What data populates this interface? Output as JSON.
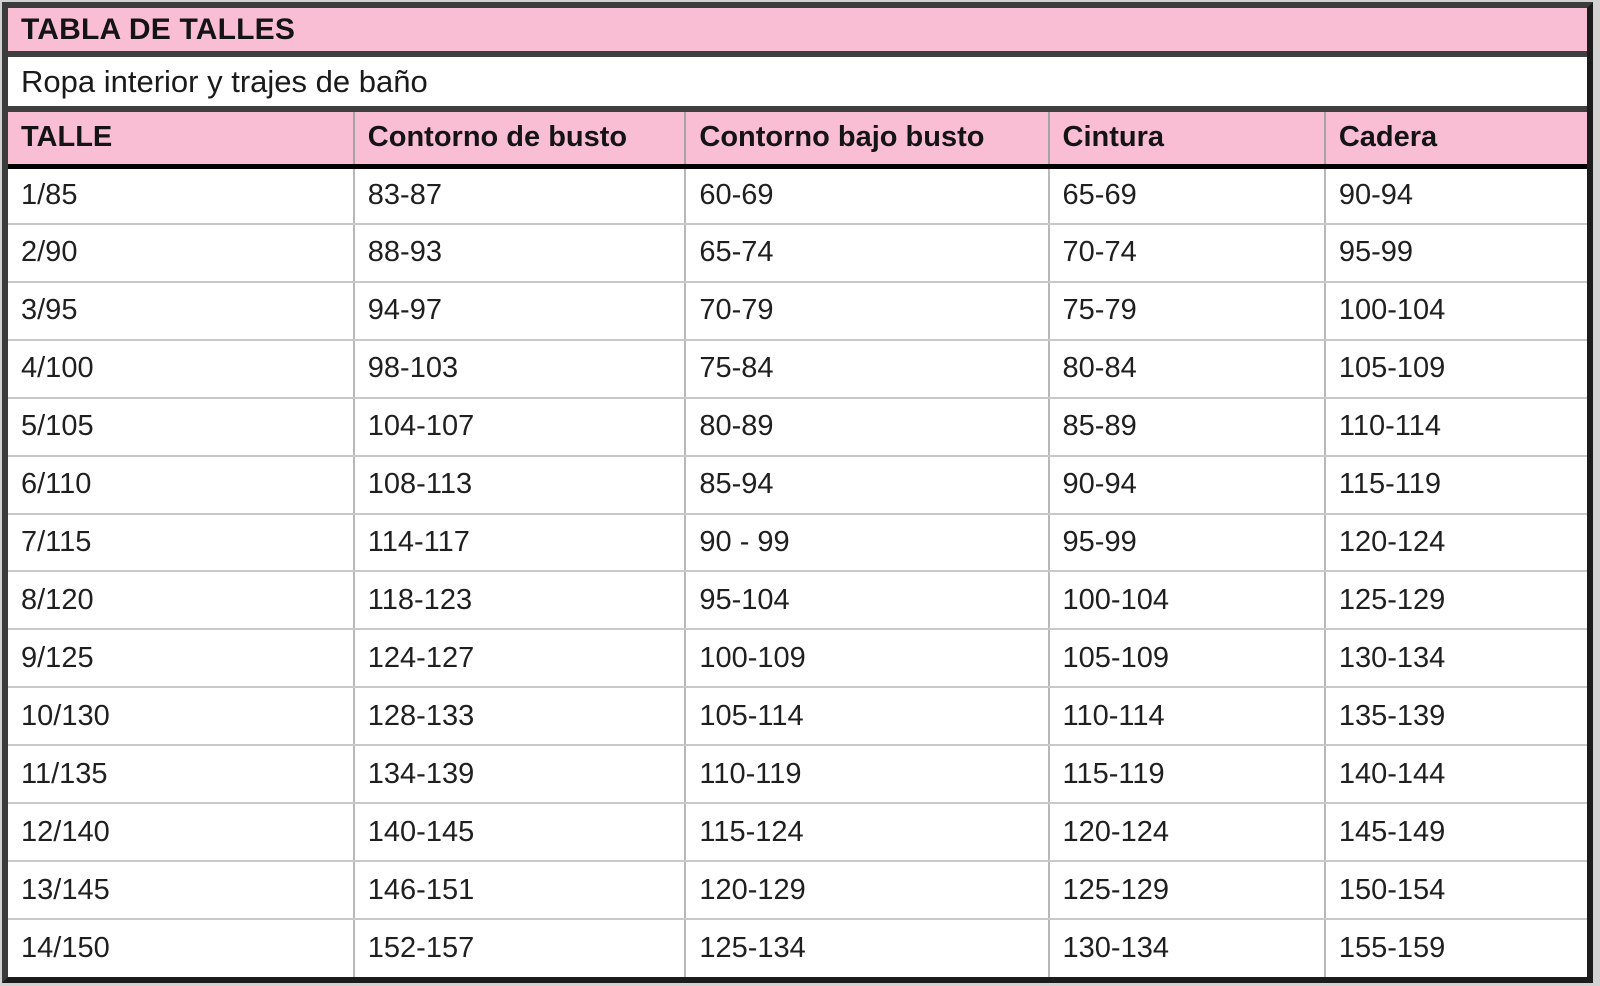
{
  "table": {
    "title": "TABLA DE TALLES",
    "subtitle": "Ropa interior y trajes de baño",
    "columns": [
      "TALLE",
      "Contorno de busto",
      "Contorno bajo busto",
      "Cintura",
      "Cadera"
    ],
    "rows": [
      [
        "1/85",
        "83-87",
        "60-69",
        "65-69",
        "90-94"
      ],
      [
        "2/90",
        "88-93",
        "65-74",
        "70-74",
        "95-99"
      ],
      [
        "3/95",
        "94-97",
        "70-79",
        "75-79",
        "100-104"
      ],
      [
        "4/100",
        "98-103",
        "75-84",
        "80-84",
        "105-109"
      ],
      [
        "5/105",
        "104-107",
        "80-89",
        "85-89",
        "110-114"
      ],
      [
        "6/110",
        "108-113",
        "85-94",
        "90-94",
        "115-119"
      ],
      [
        "7/115",
        "114-117",
        "90 - 99",
        "95-99",
        "120-124"
      ],
      [
        "8/120",
        "118-123",
        "95-104",
        "100-104",
        "125-129"
      ],
      [
        "9/125",
        "124-127",
        "100-109",
        "105-109",
        "130-134"
      ],
      [
        "10/130",
        "128-133",
        "105-114",
        "110-114",
        "135-139"
      ],
      [
        "11/135",
        "134-139",
        "110-119",
        "115-119",
        "140-144"
      ],
      [
        "12/140",
        "140-145",
        "115-124",
        "120-124",
        "145-149"
      ],
      [
        "13/145",
        "146-151",
        "120-129",
        "125-129",
        "150-154"
      ],
      [
        "14/150",
        "152-157",
        "125-134",
        "130-134",
        "155-159"
      ]
    ],
    "colors": {
      "header_pink": "#f9bed3",
      "frame_dark": "#3c3c3c",
      "header_underline": "#000000",
      "grid_line": "#c0c0c0",
      "page_margin": "#d2d2d2"
    }
  }
}
